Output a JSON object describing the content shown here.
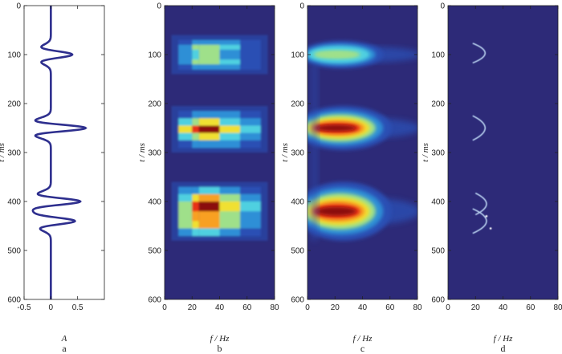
{
  "chart_data": [
    {
      "type": "line",
      "panel_label": "a",
      "xlabel": "A",
      "ylabel": "t / ms",
      "xlim": [
        -0.5,
        1.0
      ],
      "ylim": [
        600,
        0
      ],
      "xticks": [
        "-0.5",
        "0",
        "0.5"
      ],
      "yticks": [
        "0",
        "100",
        "200",
        "300",
        "400",
        "500",
        "600"
      ],
      "line_color": "#2e2f8e",
      "wavelets": [
        {
          "t0": 100,
          "amp": 0.4,
          "freq": 25,
          "width": 14
        },
        {
          "t0": 250,
          "amp": 0.65,
          "freq": 25,
          "width": 14
        },
        {
          "t0": 400,
          "amp": 0.55,
          "freq": 25,
          "width": 14
        },
        {
          "t0": 440,
          "amp": 0.45,
          "freq": 25,
          "width": 14
        }
      ]
    },
    {
      "type": "heatmap",
      "panel_label": "b",
      "xlabel": "f / Hz",
      "ylabel": "t / ms",
      "xlim": [
        0,
        80
      ],
      "ylim": [
        600,
        0
      ],
      "xticks": [
        "0",
        "20",
        "40",
        "60",
        "80"
      ],
      "yticks": [
        "0",
        "100",
        "200",
        "300",
        "400",
        "500",
        "600"
      ],
      "background": "#2d2a78"
    },
    {
      "type": "heatmap",
      "panel_label": "c",
      "xlabel": "f / Hz",
      "ylabel": "t / ms",
      "xlim": [
        0,
        80
      ],
      "ylim": [
        600,
        0
      ],
      "xticks": [
        "0",
        "20",
        "40",
        "60",
        "80"
      ],
      "yticks": [
        "0",
        "100",
        "200",
        "300",
        "400",
        "500",
        "600"
      ],
      "background": "#2d2a78"
    },
    {
      "type": "heatmap",
      "panel_label": "d",
      "xlabel": "f / Hz",
      "ylabel": "t / ms",
      "xlim": [
        0,
        80
      ],
      "ylim": [
        600,
        0
      ],
      "xticks": [
        "0",
        "20",
        "40",
        "60",
        "80"
      ],
      "yticks": [
        "0",
        "100",
        "200",
        "300",
        "400",
        "500",
        "600"
      ],
      "background": "#2d2a78"
    }
  ]
}
